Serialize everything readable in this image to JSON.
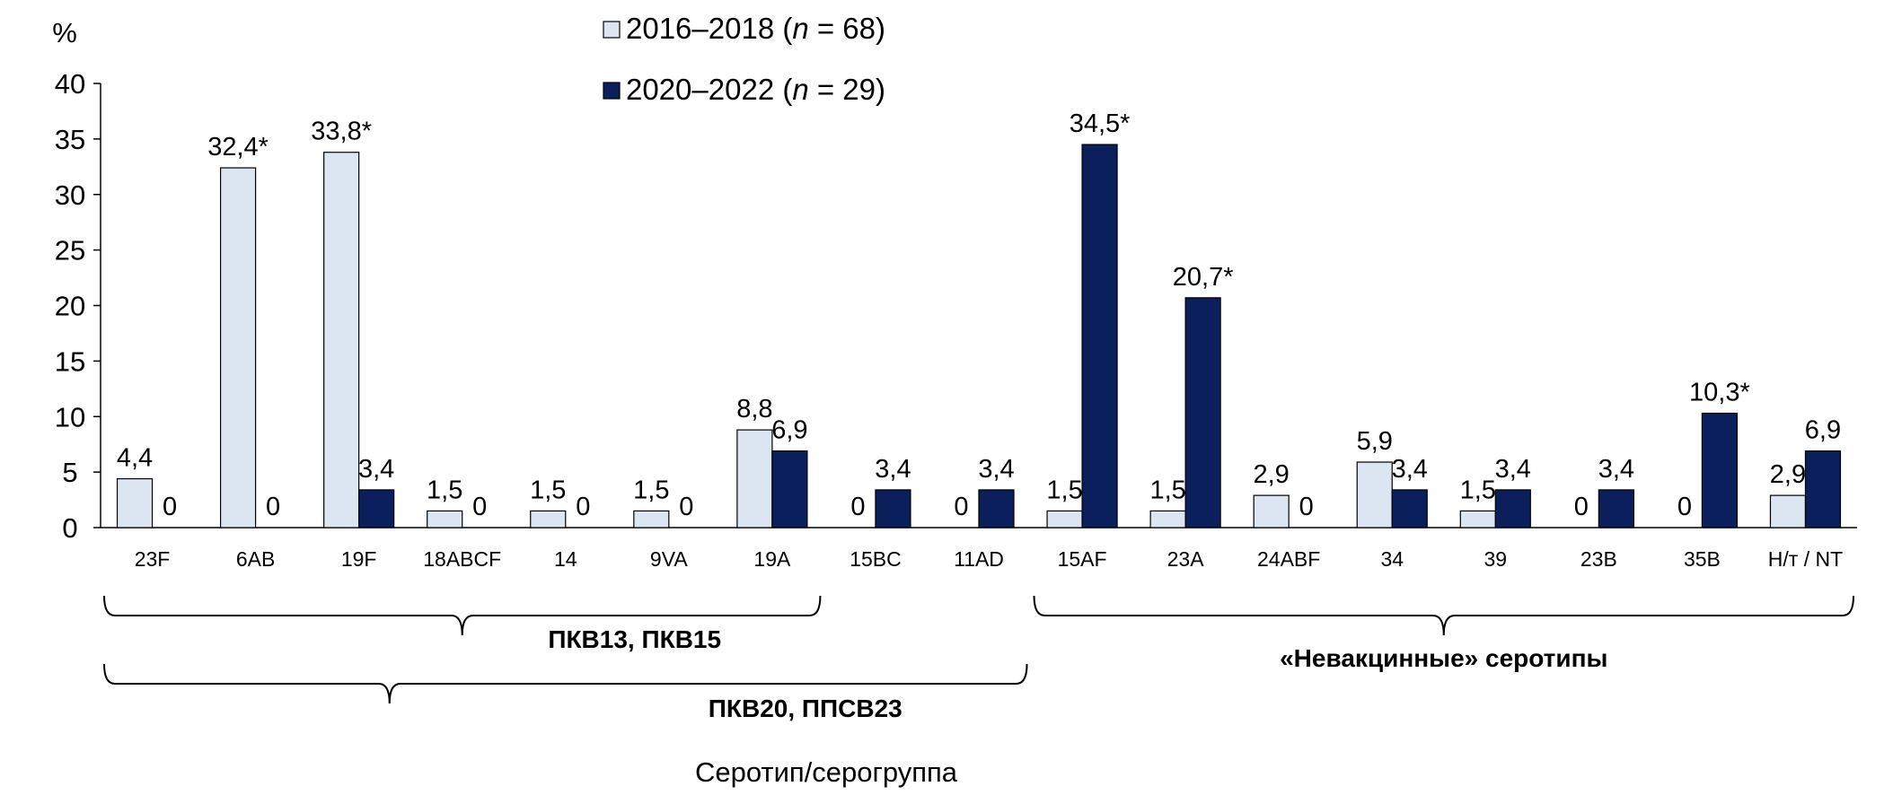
{
  "chart_data": {
    "type": "bar",
    "ylabel": "%",
    "xlabel": "Серотип/серогруппа",
    "ylim": [
      0,
      40
    ],
    "yticks": [
      "0",
      "5",
      "10",
      "15",
      "20",
      "25",
      "30",
      "35",
      "40"
    ],
    "legend_position": "top-center",
    "categories": [
      "23F",
      "6AB",
      "19F",
      "18ABCF",
      "14",
      "9VA",
      "19A",
      "15BC",
      "11AD",
      "15AF",
      "23A",
      "24ABF",
      "34",
      "39",
      "23B",
      "35B",
      "Н/т / NT"
    ],
    "series": [
      {
        "name": "2016–2018 (n = 68)",
        "name_parts": [
          "2016–2018 (",
          "n",
          " = 68)"
        ],
        "color": "#dce6f2",
        "values": [
          4.4,
          32.4,
          33.8,
          1.5,
          1.5,
          1.5,
          8.8,
          0,
          0,
          1.5,
          1.5,
          2.9,
          5.9,
          1.5,
          0,
          0,
          2.9
        ],
        "labels": [
          "4,4",
          "32,4*",
          "33,8*",
          "1,5",
          "1,5",
          "1,5",
          "8,8",
          "0",
          "0",
          "1,5",
          "1,5",
          "2,9",
          "5,9",
          "1,5",
          "0",
          "0",
          "2,9"
        ]
      },
      {
        "name": "2020–2022 (n = 29)",
        "name_parts": [
          "2020–2022 (",
          "n",
          " = 29)"
        ],
        "color": "#0a1f5c",
        "values": [
          0,
          0,
          3.4,
          0,
          0,
          0,
          6.9,
          3.4,
          3.4,
          34.5,
          20.7,
          0,
          3.4,
          3.4,
          3.4,
          10.3,
          6.9
        ],
        "labels": [
          "0",
          "0",
          "3,4",
          "0",
          "0",
          "0",
          "6,9",
          "3,4",
          "3,4",
          "34,5*",
          "20,7*",
          "0",
          "3,4",
          "3,4",
          "3,4",
          "10,3*",
          "6,9"
        ]
      }
    ],
    "groups": [
      {
        "label": "ПКВ13, ПКВ15",
        "from": 0,
        "to": 6
      },
      {
        "label": "ПКВ20, ППСВ23",
        "from": 0,
        "to": 8
      },
      {
        "label": "«Невакцинные» серотипы",
        "from": 9,
        "to": 16
      }
    ]
  }
}
